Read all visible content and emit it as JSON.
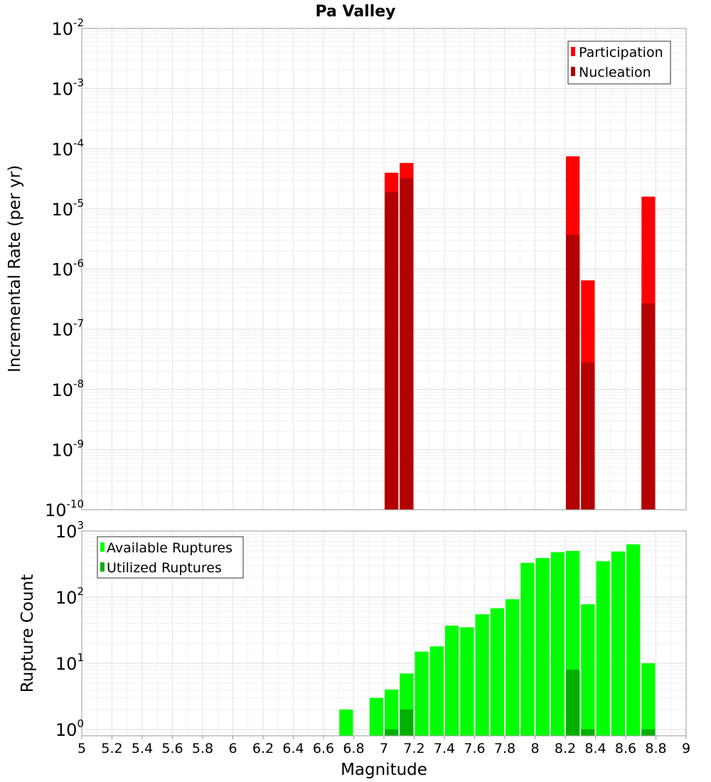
{
  "chart_data": [
    {
      "type": "bar",
      "title": "Pa Valley",
      "ylabel": "Incremental Rate (per yr)",
      "yscale": "log",
      "ylim": [
        1e-10,
        0.01
      ],
      "xlim": [
        5,
        9
      ],
      "yticks": [
        {
          "base": "10",
          "exp": "-10"
        },
        {
          "base": "10",
          "exp": "-9"
        },
        {
          "base": "10",
          "exp": "-8"
        },
        {
          "base": "10",
          "exp": "-7"
        },
        {
          "base": "10",
          "exp": "-6"
        },
        {
          "base": "10",
          "exp": "-5"
        },
        {
          "base": "10",
          "exp": "-4"
        },
        {
          "base": "10",
          "exp": "-3"
        },
        {
          "base": "10",
          "exp": "-2"
        }
      ],
      "legend": {
        "position": "top-right",
        "entries": [
          "Participation",
          "Nucleation"
        ]
      },
      "grid": true,
      "series": [
        {
          "name": "Participation",
          "color": "#ff0000",
          "x": [
            7.05,
            7.15,
            8.25,
            8.35,
            8.75
          ],
          "values": [
            4e-05,
            5.8e-05,
            7.5e-05,
            6.5e-07,
            1.6e-05
          ]
        },
        {
          "name": "Nucleation",
          "color": "#b30000",
          "x": [
            7.05,
            7.15,
            8.25,
            8.35,
            8.75
          ],
          "values": [
            1.9e-05,
            3.2e-05,
            3.7e-06,
            2.8e-08,
            2.7e-07
          ]
        }
      ]
    },
    {
      "type": "bar",
      "ylabel": "Rupture Count",
      "xlabel": "Magnitude",
      "yscale": "log",
      "ylim": [
        0.8,
        1000
      ],
      "xlim": [
        5,
        9
      ],
      "yticks": [
        {
          "base": "10",
          "exp": "0",
          "value": 1
        },
        {
          "base": "10",
          "exp": "1",
          "value": 10
        },
        {
          "base": "10",
          "exp": "2",
          "value": 100
        },
        {
          "base": "10",
          "exp": "3",
          "value": 1000
        }
      ],
      "xticks": [
        "5",
        "5.2",
        "5.4",
        "5.6",
        "5.8",
        "6",
        "6.2",
        "6.4",
        "6.6",
        "6.8",
        "7",
        "7.2",
        "7.4",
        "7.6",
        "7.8",
        "8",
        "8.2",
        "8.4",
        "8.6",
        "8.8",
        "9"
      ],
      "legend": {
        "position": "top-left",
        "entries": [
          "Available Ruptures",
          "Utilized Ruptures"
        ]
      },
      "grid": true,
      "series": [
        {
          "name": "Available Ruptures",
          "color": "#00ff00",
          "x": [
            6.75,
            6.95,
            7.05,
            7.15,
            7.25,
            7.35,
            7.45,
            7.55,
            7.65,
            7.75,
            7.85,
            7.95,
            8.05,
            8.15,
            8.25,
            8.35,
            8.45,
            8.55,
            8.65,
            8.75
          ],
          "values": [
            2,
            3,
            4,
            7,
            15,
            18,
            37,
            35,
            55,
            68,
            93,
            330,
            390,
            480,
            500,
            78,
            350,
            490,
            630,
            10
          ]
        },
        {
          "name": "Utilized Ruptures",
          "color": "#00b000",
          "x": [
            7.05,
            7.15,
            8.25,
            8.35,
            8.75
          ],
          "values": [
            1,
            2,
            8,
            1,
            1
          ]
        }
      ]
    }
  ]
}
